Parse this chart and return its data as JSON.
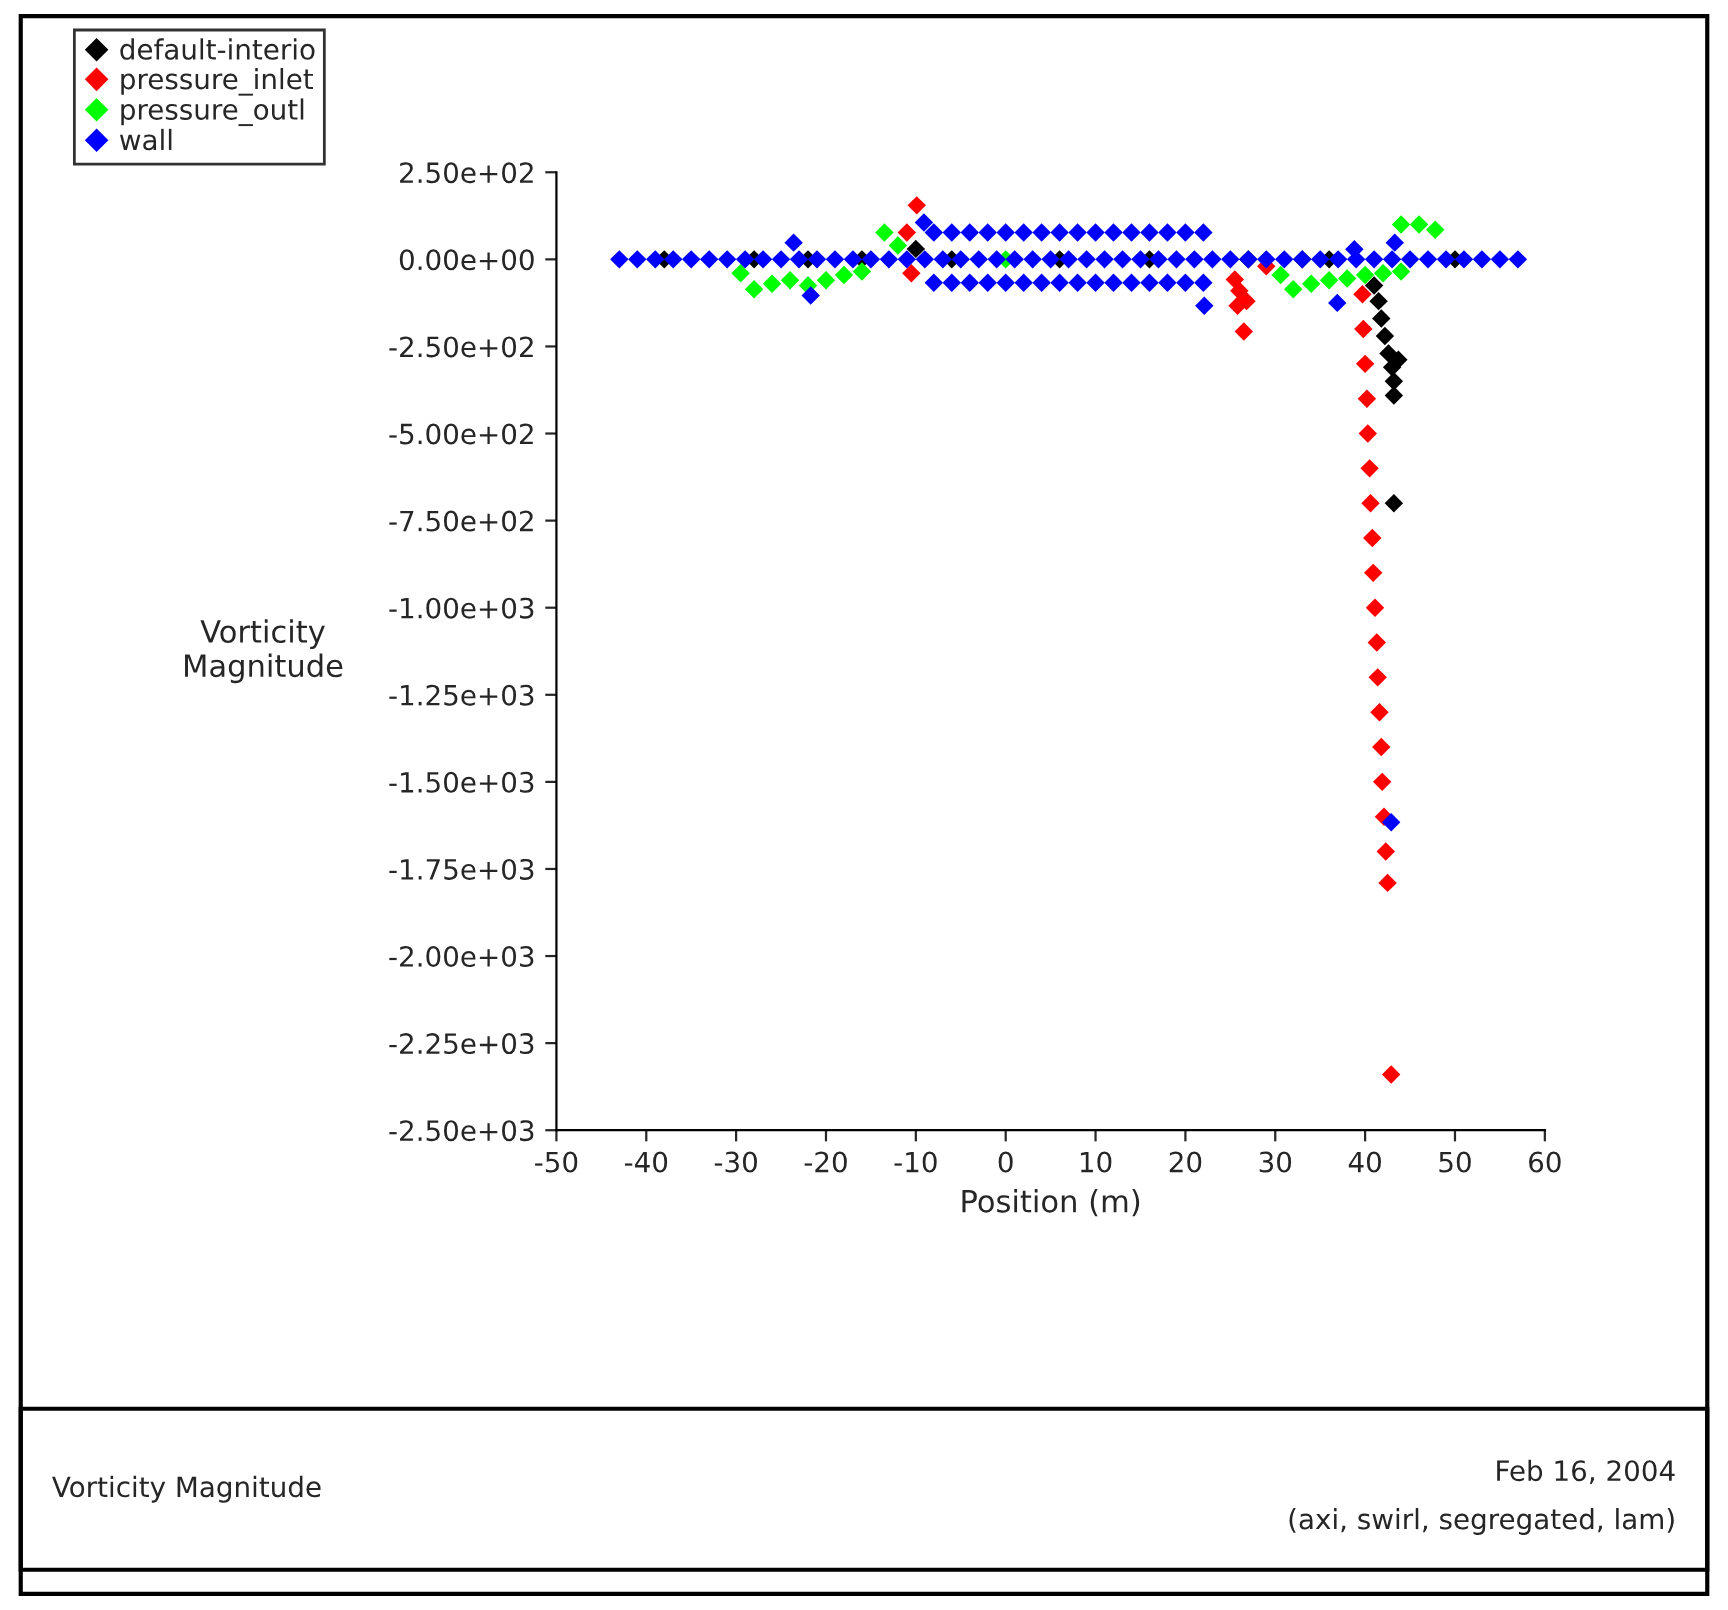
{
  "chart_data": {
    "type": "scatter",
    "xlabel": "Position (m)",
    "ylabel": "Vorticity\nMagnitude",
    "xlim": [
      -50,
      60
    ],
    "xticks": [
      -50,
      -40,
      -30,
      -20,
      -10,
      0,
      10,
      20,
      30,
      40,
      50,
      60
    ],
    "ylim": [
      -2500,
      250
    ],
    "yticks": [
      {
        "value": 250,
        "label": "2.50e+02"
      },
      {
        "value": 0,
        "label": "0.00e+00"
      },
      {
        "value": -250,
        "label": "-2.50e+02"
      },
      {
        "value": -500,
        "label": "-5.00e+02"
      },
      {
        "value": -750,
        "label": "-7.50e+02"
      },
      {
        "value": -1000,
        "label": "-1.00e+03"
      },
      {
        "value": -1250,
        "label": "-1.25e+03"
      },
      {
        "value": -1500,
        "label": "-1.50e+03"
      },
      {
        "value": -1750,
        "label": "-1.75e+03"
      },
      {
        "value": -2000,
        "label": "-2.00e+03"
      },
      {
        "value": -2250,
        "label": "-2.25e+03"
      },
      {
        "value": -2500,
        "label": "-2.50e+03"
      }
    ],
    "grid": false,
    "legend": "top left",
    "marker": "diamond",
    "annotations": [
      "Vorticity Magnitude",
      "Feb 16, 2004",
      "(axi, swirl, segregated, lam)"
    ],
    "series": [
      {
        "name": "default-interio",
        "color": "#000000",
        "x": [
          -38,
          -28,
          -22,
          -16,
          -10,
          -6,
          6,
          16,
          27,
          33,
          36,
          50,
          41,
          41.5,
          41.8,
          42.2,
          42.6,
          43,
          43.7,
          43.2,
          43.2,
          43.2
        ],
        "values": [
          0,
          0,
          0,
          0,
          30,
          0,
          0,
          0,
          0,
          0,
          0,
          0,
          -75,
          -120,
          -170,
          -220,
          -270,
          -310,
          -288,
          -350,
          -391,
          -700
        ]
      },
      {
        "name": "pressure_inlet",
        "color": "#ff0000",
        "x": [
          -9.9,
          -11,
          -10.5,
          25.5,
          26,
          26.8,
          25.8,
          26.5,
          29,
          39.7,
          39.8,
          40.0,
          40.2,
          40.3,
          40.5,
          40.6,
          40.8,
          40.9,
          41.1,
          41.3,
          41.4,
          41.6,
          41.8,
          41.9,
          42.1,
          42.3,
          42.5,
          42.9
        ],
        "values": [
          155,
          77,
          -40,
          -58,
          -90,
          -120,
          -133,
          -207,
          -20,
          -100,
          -200,
          -300,
          -400,
          -500,
          -600,
          -700,
          -800,
          -900,
          -1000,
          -1100,
          -1200,
          -1300,
          -1400,
          -1500,
          -1600,
          -1700,
          -1790,
          -2340
        ]
      },
      {
        "name": "pressure_outl",
        "color": "#00ff00",
        "x": [
          -29.5,
          -28,
          -26,
          -24,
          -22,
          -20,
          -18,
          -16,
          -13.5,
          -12,
          0,
          30.6,
          32,
          34,
          36,
          38,
          40,
          42,
          44,
          44,
          46,
          47.8
        ],
        "values": [
          -40,
          -86,
          -70,
          -60,
          -75,
          -60,
          -45,
          -35,
          77,
          40,
          0,
          -45,
          -86,
          -70,
          -60,
          -55,
          -45,
          -40,
          -35,
          100,
          100,
          85
        ]
      },
      {
        "name": "wall",
        "color": "#0000ff",
        "x": [
          -43,
          -41,
          -39,
          -37,
          -35,
          -33,
          -31,
          -29,
          -27,
          -25,
          -23,
          -21,
          -19,
          -17,
          -15,
          -13,
          -11,
          -9,
          -7,
          -5,
          -3,
          -1,
          1,
          3,
          5,
          7,
          9,
          11,
          13,
          15,
          17,
          19,
          21,
          23,
          25,
          27,
          29,
          31,
          33,
          35,
          37,
          39,
          41,
          43,
          45,
          47,
          49,
          51,
          53,
          55,
          57,
          -8,
          -6,
          -4,
          -2,
          0,
          2,
          4,
          6,
          8,
          10,
          12,
          14,
          16,
          18,
          20,
          22,
          -8,
          -6,
          -4,
          -2,
          0,
          2,
          4,
          6,
          8,
          10,
          12,
          14,
          16,
          18,
          20,
          22,
          -23.6,
          -21.7,
          -9.1,
          22.1,
          36.9,
          38.8,
          43.3,
          42.9
        ],
        "values": [
          0,
          0,
          0,
          0,
          0,
          0,
          0,
          0,
          0,
          0,
          0,
          0,
          0,
          0,
          0,
          0,
          0,
          0,
          0,
          0,
          0,
          0,
          0,
          0,
          0,
          0,
          0,
          0,
          0,
          0,
          0,
          0,
          0,
          0,
          0,
          0,
          0,
          0,
          0,
          0,
          0,
          0,
          0,
          0,
          0,
          0,
          0,
          0,
          0,
          0,
          0,
          77,
          77,
          77,
          77,
          77,
          77,
          77,
          77,
          77,
          77,
          77,
          77,
          77,
          77,
          77,
          77,
          -67,
          -67,
          -67,
          -67,
          -67,
          -67,
          -67,
          -67,
          -67,
          -67,
          -67,
          -67,
          -67,
          -67,
          -67,
          -67,
          48,
          -104,
          106,
          -133,
          -125,
          29,
          48,
          -1616
        ]
      }
    ]
  }
}
